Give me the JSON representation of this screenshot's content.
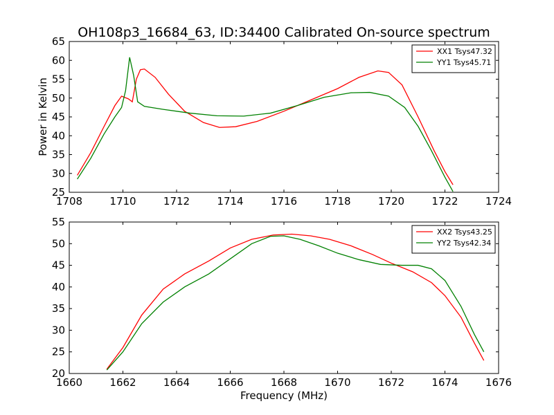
{
  "chart_data": [
    {
      "type": "line",
      "title": "OH108p3_16684_63, ID:34400 Calibrated On-source spectrum",
      "xlabel": "",
      "ylabel": "Power in Kelvin",
      "xlim": [
        1708,
        1724
      ],
      "ylim": [
        25,
        65
      ],
      "xticks": [
        "1708",
        "1710",
        "1712",
        "1714",
        "1716",
        "1718",
        "1720",
        "1722",
        "1724"
      ],
      "yticks": [
        "25",
        "30",
        "35",
        "40",
        "45",
        "50",
        "55",
        "60",
        "65"
      ],
      "legend": "top-right",
      "grid": false,
      "series": [
        {
          "name": "XX1 Tsys47.32",
          "color": "#ff0000",
          "points": [
            [
              1708.3,
              29.5
            ],
            [
              1708.8,
              35.5
            ],
            [
              1709.3,
              42.5
            ],
            [
              1709.7,
              48.0
            ],
            [
              1709.95,
              50.5
            ],
            [
              1710.2,
              49.8
            ],
            [
              1710.35,
              49.0
            ],
            [
              1710.5,
              55.0
            ],
            [
              1710.65,
              57.5
            ],
            [
              1710.8,
              57.7
            ],
            [
              1711.2,
              55.5
            ],
            [
              1711.7,
              51.0
            ],
            [
              1712.3,
              46.5
            ],
            [
              1713.0,
              43.5
            ],
            [
              1713.6,
              42.2
            ],
            [
              1714.2,
              42.4
            ],
            [
              1715.0,
              43.8
            ],
            [
              1716.0,
              46.5
            ],
            [
              1717.0,
              49.5
            ],
            [
              1718.0,
              52.5
            ],
            [
              1718.8,
              55.5
            ],
            [
              1719.5,
              57.2
            ],
            [
              1719.9,
              56.8
            ],
            [
              1720.4,
              53.5
            ],
            [
              1721.0,
              45.0
            ],
            [
              1721.6,
              36.0
            ],
            [
              1722.0,
              30.5
            ],
            [
              1722.3,
              27.0
            ]
          ]
        },
        {
          "name": "YY1 Tsys45.71",
          "color": "#008000",
          "points": [
            [
              1708.3,
              28.5
            ],
            [
              1708.8,
              34.0
            ],
            [
              1709.3,
              40.5
            ],
            [
              1709.7,
              45.0
            ],
            [
              1709.95,
              47.5
            ],
            [
              1710.1,
              52.0
            ],
            [
              1710.25,
              60.8
            ],
            [
              1710.4,
              56.0
            ],
            [
              1710.55,
              49.0
            ],
            [
              1710.8,
              47.8
            ],
            [
              1711.5,
              47.0
            ],
            [
              1712.5,
              46.0
            ],
            [
              1713.5,
              45.3
            ],
            [
              1714.5,
              45.2
            ],
            [
              1715.5,
              46.0
            ],
            [
              1716.5,
              48.0
            ],
            [
              1717.5,
              50.2
            ],
            [
              1718.5,
              51.4
            ],
            [
              1719.2,
              51.5
            ],
            [
              1719.9,
              50.5
            ],
            [
              1720.5,
              47.5
            ],
            [
              1721.0,
              42.5
            ],
            [
              1721.5,
              36.0
            ],
            [
              1722.0,
              29.0
            ],
            [
              1722.3,
              25.2
            ]
          ]
        }
      ]
    },
    {
      "type": "line",
      "title": "",
      "xlabel": "Frequency (MHz)",
      "ylabel": "",
      "xlim": [
        1660,
        1676
      ],
      "ylim": [
        20,
        55
      ],
      "xticks": [
        "1660",
        "1662",
        "1664",
        "1666",
        "1668",
        "1670",
        "1672",
        "1674",
        "1676"
      ],
      "yticks": [
        "20",
        "25",
        "30",
        "35",
        "40",
        "45",
        "50",
        "55"
      ],
      "legend": "top-right",
      "grid": false,
      "series": [
        {
          "name": "XX2 Tsys43.25",
          "color": "#ff0000",
          "points": [
            [
              1661.4,
              21.0
            ],
            [
              1662.0,
              26.0
            ],
            [
              1662.7,
              33.5
            ],
            [
              1663.5,
              39.5
            ],
            [
              1664.3,
              43.0
            ],
            [
              1665.2,
              46.0
            ],
            [
              1666.0,
              49.0
            ],
            [
              1666.8,
              51.0
            ],
            [
              1667.6,
              52.0
            ],
            [
              1668.3,
              52.2
            ],
            [
              1669.0,
              51.8
            ],
            [
              1669.7,
              51.0
            ],
            [
              1670.5,
              49.5
            ],
            [
              1671.3,
              47.5
            ],
            [
              1672.0,
              45.5
            ],
            [
              1672.8,
              43.5
            ],
            [
              1673.5,
              41.0
            ],
            [
              1674.0,
              38.0
            ],
            [
              1674.6,
              33.0
            ],
            [
              1675.1,
              27.0
            ],
            [
              1675.45,
              23.0
            ]
          ]
        },
        {
          "name": "YY2 Tsys42.34",
          "color": "#008000",
          "points": [
            [
              1661.4,
              20.8
            ],
            [
              1662.0,
              25.0
            ],
            [
              1662.7,
              31.5
            ],
            [
              1663.5,
              36.5
            ],
            [
              1664.3,
              40.0
            ],
            [
              1665.2,
              43.0
            ],
            [
              1666.0,
              46.5
            ],
            [
              1666.8,
              50.0
            ],
            [
              1667.5,
              51.7
            ],
            [
              1668.0,
              51.8
            ],
            [
              1668.6,
              51.0
            ],
            [
              1669.3,
              49.5
            ],
            [
              1670.0,
              47.8
            ],
            [
              1670.8,
              46.3
            ],
            [
              1671.6,
              45.2
            ],
            [
              1672.4,
              45.0
            ],
            [
              1673.0,
              45.0
            ],
            [
              1673.5,
              44.2
            ],
            [
              1674.0,
              41.5
            ],
            [
              1674.6,
              35.5
            ],
            [
              1675.1,
              29.0
            ],
            [
              1675.45,
              25.0
            ]
          ]
        }
      ]
    }
  ]
}
